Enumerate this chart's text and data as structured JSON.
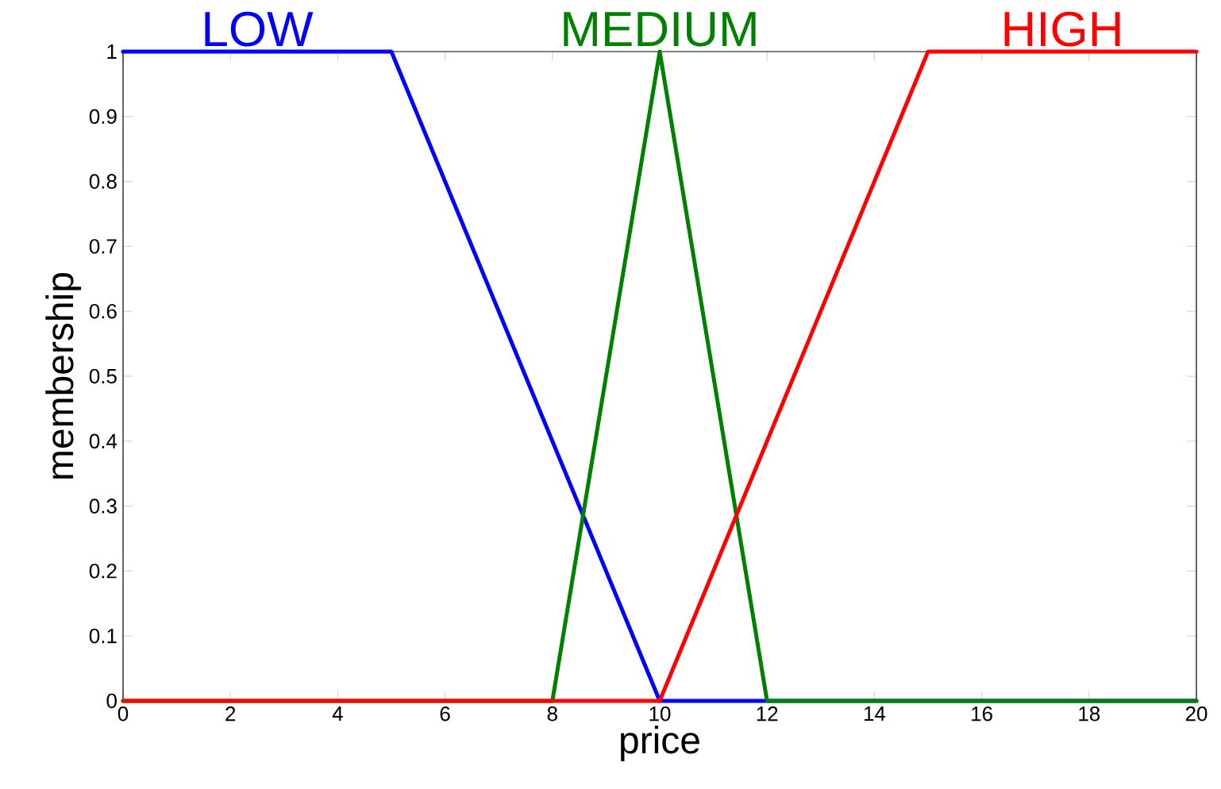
{
  "chart_data": {
    "type": "line",
    "xlabel": "price",
    "ylabel": "membership",
    "line_style": "solid",
    "xlim": [
      0,
      20
    ],
    "ylim": [
      0,
      1
    ],
    "xticks": [
      0,
      2,
      4,
      6,
      8,
      10,
      12,
      14,
      16,
      18,
      20
    ],
    "yticks": [
      0,
      0.1,
      0.2,
      0.3,
      0.4,
      0.5,
      0.6,
      0.7,
      0.8,
      0.9,
      1
    ],
    "series": [
      {
        "name": "LOW",
        "color": "#0000ff",
        "x": [
          0,
          5,
          10,
          20
        ],
        "values": [
          1,
          1,
          0,
          0
        ]
      },
      {
        "name": "MEDIUM",
        "color": "#008000",
        "x": [
          0,
          8,
          10,
          12,
          20
        ],
        "values": [
          0,
          0,
          1,
          0,
          0
        ]
      },
      {
        "name": "HIGH",
        "color": "#ff0000",
        "x": [
          0,
          10,
          15,
          20
        ],
        "values": [
          0,
          0,
          1,
          1
        ]
      }
    ]
  }
}
